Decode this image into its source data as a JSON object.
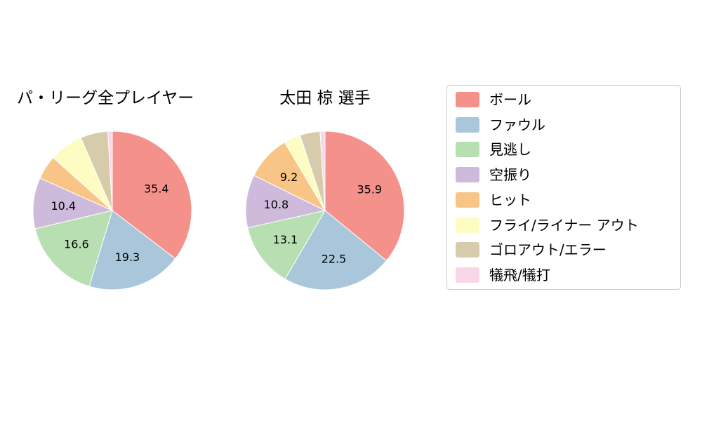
{
  "chart_data": [
    {
      "type": "pie",
      "title": "パ・リーグ全プレイヤー",
      "categories": [
        "ボール",
        "ファウル",
        "見逃し",
        "空振り",
        "ヒット",
        "フライ/ライナー アウト",
        "ゴロアウト/エラー",
        "犠飛/犠打"
      ],
      "values": [
        35.4,
        19.3,
        16.6,
        10.4,
        4.9,
        6.9,
        5.6,
        0.9
      ],
      "slice_labels": [
        "35.4",
        "19.3",
        "16.6",
        "10.4",
        null,
        null,
        null,
        null
      ],
      "start_angle_deg": 90,
      "direction": "clockwise",
      "unit": "percent"
    },
    {
      "type": "pie",
      "title": "太田 椋  選手",
      "categories": [
        "ボール",
        "ファウル",
        "見逃し",
        "空振り",
        "ヒット",
        "フライ/ライナー アウト",
        "ゴロアウト/エラー",
        "犠飛/犠打"
      ],
      "values": [
        35.9,
        22.5,
        13.1,
        10.8,
        9.2,
        3.4,
        4.1,
        1.0
      ],
      "slice_labels": [
        "35.9",
        "22.5",
        "13.1",
        "10.8",
        "9.2",
        null,
        null,
        null
      ],
      "start_angle_deg": 90,
      "direction": "clockwise",
      "unit": "percent"
    }
  ],
  "legend": {
    "position": "right",
    "items": [
      {
        "label": "ボール",
        "color": "#f5918b"
      },
      {
        "label": "ファウル",
        "color": "#a9c6da"
      },
      {
        "label": "見逃し",
        "color": "#b7dfb2"
      },
      {
        "label": "空振り",
        "color": "#cebadb"
      },
      {
        "label": "ヒット",
        "color": "#f9c587"
      },
      {
        "label": "フライ/ライナー アウト",
        "color": "#fcfcc3"
      },
      {
        "label": "ゴロアウト/エラー",
        "color": "#d6ccac"
      },
      {
        "label": "犠飛/犠打",
        "color": "#fad6e9"
      }
    ]
  },
  "slice_label_color": "#000000"
}
